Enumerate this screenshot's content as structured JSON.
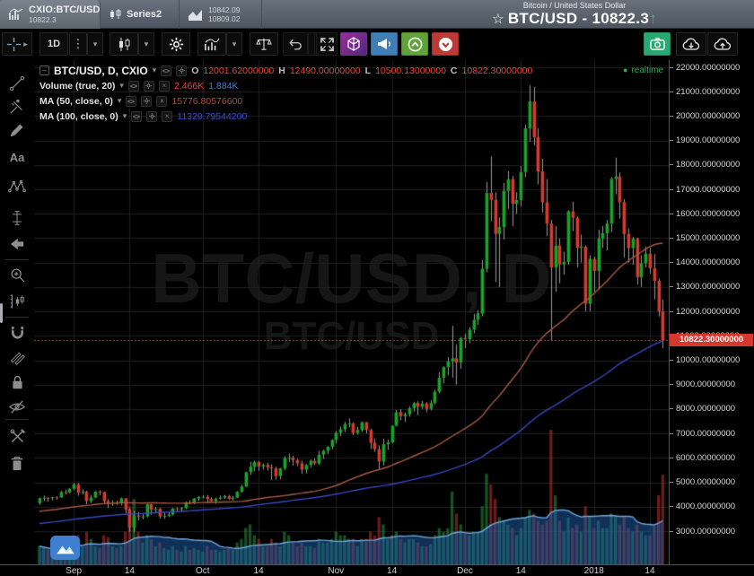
{
  "glyphs": {
    "chevron_down": "▾",
    "more_dots": "⋮",
    "star": "☆",
    "up_arrow": "↑",
    "dot": "●",
    "minus": "–",
    "close": "×",
    "text_tool": "Aa",
    "expander": "▸"
  },
  "tab_bar": {
    "tabs": [
      {
        "title": "CXIO:BTC/USD",
        "subtitle": "10822.3"
      },
      {
        "title": "Series2"
      },
      {
        "line1": "10842.09",
        "line2": "10809.02"
      }
    ],
    "symbol_small": "Bitcoin / United States Dollar",
    "symbol_big": "BTC/USD - 10822.3"
  },
  "toolbar": {
    "interval": "1D"
  },
  "legend": {
    "main": {
      "title": "BTC/USD, D, CXIO",
      "o_label": "O",
      "o": "12001.62000000",
      "h_label": "H",
      "h": "12490.00000000",
      "l_label": "L",
      "l": "10500.13000000",
      "c_label": "C",
      "c": "10822.30000000"
    },
    "volume": {
      "title": "Volume (true, 20)",
      "value": "2.466K",
      "ma": "1.884K"
    },
    "ma50": {
      "title": "MA (50, close, 0)",
      "value": "15776.80576600"
    },
    "ma100": {
      "title": "MA (100, close, 0)",
      "value": "11329.79544200"
    },
    "realtime": "realtime"
  },
  "watermark": {
    "line1": "BTC/USD, D",
    "line2": "BTC/USD"
  },
  "price_axis": {
    "labels": [
      "22000.00000000",
      "21000.00000000",
      "20000.00000000",
      "19000.00000000",
      "18000.00000000",
      "17000.00000000",
      "16000.00000000",
      "15000.00000000",
      "14000.00000000",
      "13000.00000000",
      "12000.00000000",
      "11000.00000000",
      "10000.00000000",
      "9000.00000000",
      "8000.00000000",
      "7000.00000000",
      "6000.00000000",
      "5000.00000000",
      "4000.00000000",
      "3000.00000000"
    ],
    "tag": "10822.30000000"
  },
  "time_axis": {
    "ticks": [
      {
        "label": "Sep",
        "day": 8
      },
      {
        "label": "14",
        "day": 21
      },
      {
        "label": "Oct",
        "day": 38
      },
      {
        "label": "14",
        "day": 51
      },
      {
        "label": "Nov",
        "day": 69
      },
      {
        "label": "14",
        "day": 82
      },
      {
        "label": "Dec",
        "day": 99
      },
      {
        "label": "14",
        "day": 112
      },
      {
        "label": "2018",
        "day": 129
      },
      {
        "label": "14",
        "day": 142
      }
    ]
  },
  "colors": {
    "candle_up": "#17a428",
    "candle_down": "#d63a2e",
    "wick": "#9b9b9b",
    "vol_up": "rgba(45,150,66,0.55)",
    "vol_down": "rgba(178,48,42,0.60)",
    "vol_ma_fill": "rgba(32,96,176,0.50)",
    "vol_ma_line": "#6fa8dc",
    "ma50": "#a85a43",
    "ma100": "#3848c0",
    "grid": "#1d1f21",
    "price_line": "#e33b2f",
    "tag_bg": "#d4382e",
    "realtime_green": "#35a852",
    "accent_red": "#e8463b",
    "accent_blue": "#3d7fd6"
  },
  "chart_data": {
    "type": "candlestick",
    "symbol": "BTC/USD",
    "interval": "D",
    "exchange": "CXIO",
    "title": "BTC/USD, D, CXIO",
    "start_date": "2017-08-24",
    "last_price": 10822.3,
    "price_axis_range": [
      22000,
      3000
    ],
    "price_grid_step": 1000,
    "legend_position": "top-left",
    "grid": true,
    "overlays": [
      {
        "name": "MA 50 close",
        "period": 50,
        "last_value": 15776.805766
      },
      {
        "name": "MA 100 close",
        "period": 100,
        "last_value": 11329.795442
      },
      {
        "name": "Volume MA 20",
        "period": 20,
        "last_value_k": 1.884
      }
    ],
    "last_bar": {
      "o": 12001.62,
      "h": 12490.0,
      "l": 10500.13,
      "c": 10822.3,
      "volume_k": 2.466
    },
    "candles": [
      [
        4150,
        4375,
        4080,
        4352,
        0.5
      ],
      [
        4352,
        4465,
        4240,
        4365,
        0.45
      ],
      [
        4365,
        4400,
        4200,
        4345,
        0.4
      ],
      [
        4345,
        4410,
        4260,
        4390,
        0.35
      ],
      [
        4390,
        4425,
        4295,
        4383,
        0.4
      ],
      [
        4383,
        4650,
        4360,
        4597,
        0.6
      ],
      [
        4597,
        4700,
        4500,
        4583,
        0.5
      ],
      [
        4583,
        4765,
        4550,
        4735,
        0.55
      ],
      [
        4735,
        4980,
        4680,
        4911,
        0.7
      ],
      [
        4911,
        4975,
        4450,
        4578,
        0.8
      ],
      [
        4578,
        4715,
        4500,
        4615,
        0.5
      ],
      [
        4615,
        4660,
        4100,
        4229,
        0.9
      ],
      [
        4229,
        4480,
        4150,
        4376,
        0.7
      ],
      [
        4376,
        4640,
        4360,
        4617,
        0.5
      ],
      [
        4617,
        4680,
        4470,
        4599,
        0.45
      ],
      [
        4599,
        4620,
        4120,
        4228,
        0.8
      ],
      [
        4228,
        4310,
        3950,
        4122,
        0.75
      ],
      [
        4122,
        4270,
        4032,
        4161,
        0.5
      ],
      [
        4161,
        4245,
        4080,
        4130,
        0.45
      ],
      [
        4130,
        4380,
        4060,
        4344,
        0.5
      ],
      [
        4344,
        4360,
        3730,
        3882,
        0.9
      ],
      [
        3882,
        3940,
        2980,
        3154,
        1.6
      ],
      [
        3154,
        3815,
        2970,
        3637,
        1.8
      ],
      [
        3637,
        3790,
        3440,
        3582,
        0.9
      ],
      [
        3582,
        3690,
        3480,
        3601,
        0.6
      ],
      [
        3601,
        4125,
        3555,
        4100,
        0.8
      ],
      [
        4100,
        4119,
        3670,
        3875,
        0.7
      ],
      [
        3875,
        3980,
        3750,
        3916,
        0.5
      ],
      [
        3916,
        3950,
        3520,
        3601,
        0.6
      ],
      [
        3601,
        3760,
        3505,
        3630,
        0.45
      ],
      [
        3630,
        3790,
        3575,
        3682,
        0.4
      ],
      [
        3682,
        3950,
        3640,
        3926,
        0.5
      ],
      [
        3926,
        3970,
        3820,
        3892,
        0.4
      ],
      [
        3892,
        3980,
        3800,
        3940,
        0.35
      ],
      [
        3940,
        4210,
        3900,
        4174,
        0.5
      ],
      [
        4174,
        4260,
        4100,
        4163,
        0.4
      ],
      [
        4163,
        4360,
        4110,
        4338,
        0.45
      ],
      [
        4338,
        4430,
        4250,
        4403,
        0.4
      ],
      [
        4403,
        4470,
        4340,
        4409,
        0.35
      ],
      [
        4409,
        4480,
        4160,
        4317,
        0.5
      ],
      [
        4317,
        4370,
        4210,
        4229,
        0.4
      ],
      [
        4229,
        4370,
        4120,
        4328,
        0.4
      ],
      [
        4328,
        4460,
        4290,
        4372,
        0.35
      ],
      [
        4372,
        4479,
        4320,
        4436,
        0.4
      ],
      [
        4436,
        4490,
        4280,
        4325,
        0.45
      ],
      [
        4325,
        4440,
        4256,
        4371,
        0.4
      ],
      [
        4371,
        4640,
        4350,
        4611,
        0.6
      ],
      [
        4611,
        4890,
        4580,
        4826,
        0.7
      ],
      [
        4826,
        5430,
        4800,
        5418,
        1.0
      ],
      [
        5418,
        5840,
        5300,
        5640,
        1.1
      ],
      [
        5640,
        5880,
        5450,
        5837,
        0.8
      ],
      [
        5837,
        5870,
        5470,
        5647,
        0.7
      ],
      [
        5647,
        5770,
        5520,
        5714,
        0.5
      ],
      [
        5714,
        5800,
        5480,
        5620,
        0.5
      ],
      [
        5620,
        5740,
        5100,
        5575,
        0.7
      ],
      [
        5575,
        5640,
        5110,
        5260,
        0.6
      ],
      [
        5260,
        5590,
        5120,
        5570,
        0.5
      ],
      [
        5570,
        6060,
        5500,
        5985,
        0.9
      ],
      [
        5985,
        6180,
        5830,
        6010,
        0.8
      ],
      [
        6010,
        6090,
        5690,
        5910,
        0.6
      ],
      [
        5910,
        5970,
        5660,
        5780,
        0.5
      ],
      [
        5780,
        5886,
        5350,
        5520,
        0.6
      ],
      [
        5520,
        5750,
        5360,
        5710,
        0.5
      ],
      [
        5710,
        5940,
        5600,
        5880,
        0.5
      ],
      [
        5880,
        5975,
        5700,
        5770,
        0.45
      ],
      [
        5770,
        6290,
        5720,
        6130,
        0.7
      ],
      [
        6130,
        6340,
        5950,
        6290,
        0.6
      ],
      [
        6290,
        6480,
        6150,
        6450,
        0.6
      ],
      [
        6450,
        6760,
        6350,
        6737,
        0.7
      ],
      [
        6737,
        7100,
        6590,
        7032,
        0.9
      ],
      [
        7032,
        7290,
        6890,
        7172,
        0.8
      ],
      [
        7172,
        7480,
        7050,
        7379,
        0.8
      ],
      [
        7379,
        7617,
        7250,
        7407,
        0.7
      ],
      [
        7407,
        7460,
        6930,
        7022,
        0.7
      ],
      [
        7022,
        7270,
        6950,
        7144,
        0.5
      ],
      [
        7144,
        7490,
        7060,
        7459,
        0.7
      ],
      [
        7459,
        7470,
        7000,
        7143,
        0.7
      ],
      [
        7143,
        7190,
        6360,
        6618,
        0.9
      ],
      [
        6618,
        6790,
        6240,
        6357,
        0.8
      ],
      [
        6357,
        6520,
        5507,
        5857,
        1.3
      ],
      [
        5857,
        6780,
        5690,
        6559,
        1.1
      ],
      [
        6559,
        6750,
        6330,
        6635,
        0.7
      ],
      [
        6635,
        7330,
        6590,
        7315,
        0.8
      ],
      [
        7315,
        7970,
        7290,
        7871,
        0.9
      ],
      [
        7871,
        8000,
        7540,
        7708,
        0.7
      ],
      [
        7708,
        7860,
        7470,
        7790,
        0.6
      ],
      [
        7790,
        8100,
        7690,
        8036,
        0.7
      ],
      [
        8036,
        8290,
        7900,
        8244,
        0.7
      ],
      [
        8244,
        8320,
        7750,
        8100,
        0.6
      ],
      [
        8100,
        8340,
        8000,
        8230,
        0.5
      ],
      [
        8230,
        8280,
        7870,
        8010,
        0.5
      ],
      [
        8010,
        8360,
        7950,
        8250,
        0.55
      ],
      [
        8250,
        8790,
        8200,
        8707,
        0.8
      ],
      [
        8707,
        9520,
        8650,
        9284,
        1.0
      ],
      [
        9284,
        9750,
        9050,
        9718,
        0.9
      ],
      [
        9718,
        10125,
        9390,
        9950,
        1.0
      ],
      [
        9950,
        11417,
        9290,
        10077,
        2.0
      ],
      [
        10077,
        10650,
        9000,
        9906,
        1.4
      ],
      [
        9906,
        10950,
        9650,
        10912,
        1.1
      ],
      [
        10912,
        11080,
        10500,
        10860,
        0.9
      ],
      [
        10860,
        11350,
        10700,
        11250,
        0.8
      ],
      [
        11250,
        11900,
        11100,
        11657,
        0.9
      ],
      [
        11657,
        12050,
        11450,
        11916,
        0.9
      ],
      [
        11916,
        14100,
        11800,
        13749,
        1.6
      ],
      [
        13749,
        17300,
        13600,
        16850,
        2.5
      ],
      [
        16850,
        18353,
        15700,
        16569,
        2.2
      ],
      [
        16569,
        16880,
        13200,
        15178,
        1.8
      ],
      [
        15178,
        15850,
        13000,
        15455,
        1.3
      ],
      [
        15455,
        17270,
        14950,
        16936,
        1.2
      ],
      [
        16936,
        17750,
        16200,
        17415,
        1.1
      ],
      [
        17415,
        17550,
        15500,
        16408,
        1.0
      ],
      [
        16408,
        16880,
        16000,
        16564,
        0.8
      ],
      [
        16564,
        17950,
        16300,
        17706,
        1.0
      ],
      [
        17706,
        19650,
        17500,
        19497,
        1.3
      ],
      [
        19497,
        21260,
        18950,
        20600,
        1.5
      ],
      [
        20600,
        21200,
        18800,
        19140,
        1.4
      ],
      [
        19140,
        19500,
        17200,
        17737,
        1.2
      ],
      [
        17737,
        18250,
        16050,
        16466,
        1.1
      ],
      [
        16466,
        17420,
        15100,
        15600,
        1.2
      ],
      [
        15600,
        15750,
        10800,
        13800,
        3.7
      ],
      [
        13800,
        15500,
        12800,
        14699,
        1.9
      ],
      [
        14699,
        14980,
        13150,
        13925,
        1.2
      ],
      [
        13925,
        14450,
        13500,
        14026,
        0.9
      ],
      [
        14026,
        16150,
        13900,
        16099,
        1.3
      ],
      [
        16099,
        16495,
        15300,
        15838,
        1.0
      ],
      [
        15838,
        15900,
        13800,
        14606,
        1.1
      ],
      [
        14606,
        15150,
        14000,
        14656,
        0.9
      ],
      [
        14656,
        14700,
        12000,
        12314,
        1.6
      ],
      [
        12314,
        14300,
        12000,
        14156,
        1.3
      ],
      [
        14156,
        14250,
        12800,
        13657,
        1.0
      ],
      [
        13657,
        15350,
        12900,
        14982,
        1.2
      ],
      [
        14982,
        15500,
        14600,
        15201,
        1.0
      ],
      [
        15201,
        15750,
        14500,
        15599,
        1.0
      ],
      [
        15599,
        17500,
        15250,
        17429,
        1.4
      ],
      [
        17429,
        18300,
        16800,
        17527,
        1.3
      ],
      [
        17527,
        17700,
        15800,
        16477,
        1.1
      ],
      [
        16477,
        16600,
        14200,
        15170,
        1.3
      ],
      [
        15170,
        15400,
        14000,
        14595,
        1.0
      ],
      [
        14595,
        15050,
        13900,
        14973,
        0.9
      ],
      [
        14973,
        15020,
        13105,
        13405,
        1.1
      ],
      [
        13405,
        14300,
        13000,
        13980,
        0.9
      ],
      [
        13980,
        14660,
        13800,
        14360,
        0.8
      ],
      [
        14360,
        14600,
        13550,
        13772,
        0.8
      ],
      [
        13772,
        14350,
        12500,
        13250,
        1.1
      ],
      [
        13250,
        13350,
        11800,
        12001,
        1.9
      ],
      [
        12001.62,
        12490,
        10500.13,
        10822.3,
        2.466
      ]
    ]
  }
}
